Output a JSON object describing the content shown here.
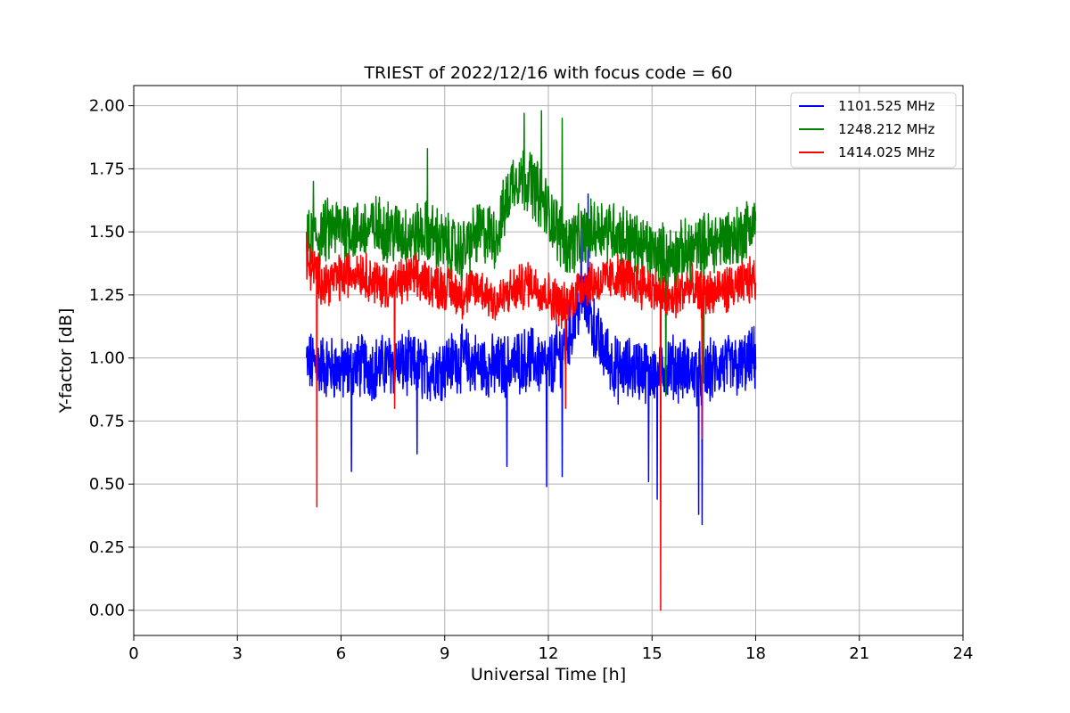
{
  "chart_data": {
    "type": "line",
    "title": "TRIEST of 2022/12/16 with focus code = 60",
    "xlabel": "Universal Time [h]",
    "ylabel": "Y-factor [dB]",
    "xlim": [
      0,
      24
    ],
    "ylim": [
      -0.1,
      2.08
    ],
    "xticks": [
      0,
      3,
      6,
      9,
      12,
      15,
      18,
      21,
      24
    ],
    "xtick_labels": [
      "0",
      "3",
      "6",
      "9",
      "12",
      "15",
      "18",
      "21",
      "24"
    ],
    "yticks": [
      0.0,
      0.25,
      0.5,
      0.75,
      1.0,
      1.25,
      1.5,
      1.75,
      2.0
    ],
    "ytick_labels": [
      "0.00",
      "0.25",
      "0.50",
      "0.75",
      "1.00",
      "1.25",
      "1.50",
      "1.75",
      "2.00"
    ],
    "grid": true,
    "legend_position": "top-right",
    "series": [
      {
        "name": "1101.525 MHz",
        "color": "#0000ff",
        "x": [
          5.0,
          5.5,
          6.0,
          6.5,
          7.0,
          7.5,
          8.0,
          8.5,
          9.0,
          9.5,
          10.0,
          10.5,
          11.0,
          11.5,
          12.0,
          12.5,
          13.0,
          13.5,
          14.0,
          14.5,
          15.0,
          15.5,
          16.0,
          16.5,
          17.0,
          17.5,
          18.0
        ],
        "y": [
          0.98,
          0.97,
          0.95,
          0.97,
          0.96,
          0.98,
          0.97,
          0.95,
          0.97,
          1.0,
          0.97,
          0.96,
          0.98,
          1.0,
          0.96,
          1.05,
          1.25,
          1.05,
          0.95,
          0.96,
          0.95,
          0.97,
          0.95,
          0.93,
          0.97,
          0.96,
          1.0
        ],
        "min": 0.34,
        "max": 1.65
      },
      {
        "name": "1248.212 MHz",
        "color": "#008000",
        "x": [
          5.0,
          5.5,
          6.0,
          6.5,
          7.0,
          7.5,
          8.0,
          8.5,
          9.0,
          9.5,
          10.0,
          10.5,
          11.0,
          11.5,
          12.0,
          12.5,
          13.0,
          13.5,
          14.0,
          14.5,
          15.0,
          15.5,
          16.0,
          16.5,
          17.0,
          17.5,
          18.0
        ],
        "y": [
          1.45,
          1.5,
          1.52,
          1.5,
          1.52,
          1.5,
          1.48,
          1.5,
          1.45,
          1.42,
          1.5,
          1.48,
          1.72,
          1.7,
          1.58,
          1.45,
          1.48,
          1.52,
          1.5,
          1.45,
          1.42,
          1.4,
          1.42,
          1.45,
          1.47,
          1.48,
          1.55
        ],
        "min": 0.85,
        "max": 1.98
      },
      {
        "name": "1414.025 MHz",
        "color": "#ff0000",
        "x": [
          5.0,
          5.5,
          6.0,
          6.5,
          7.0,
          7.5,
          8.0,
          8.5,
          9.0,
          9.5,
          10.0,
          10.5,
          11.0,
          11.5,
          12.0,
          12.5,
          13.0,
          13.5,
          14.0,
          14.5,
          15.0,
          15.5,
          16.0,
          16.5,
          17.0,
          17.5,
          18.0
        ],
        "y": [
          1.38,
          1.3,
          1.32,
          1.35,
          1.3,
          1.28,
          1.32,
          1.3,
          1.28,
          1.25,
          1.28,
          1.22,
          1.27,
          1.3,
          1.25,
          1.2,
          1.3,
          1.3,
          1.32,
          1.3,
          1.28,
          1.22,
          1.28,
          1.25,
          1.27,
          1.28,
          1.32
        ],
        "min": 0.0,
        "max": 1.5
      }
    ]
  }
}
